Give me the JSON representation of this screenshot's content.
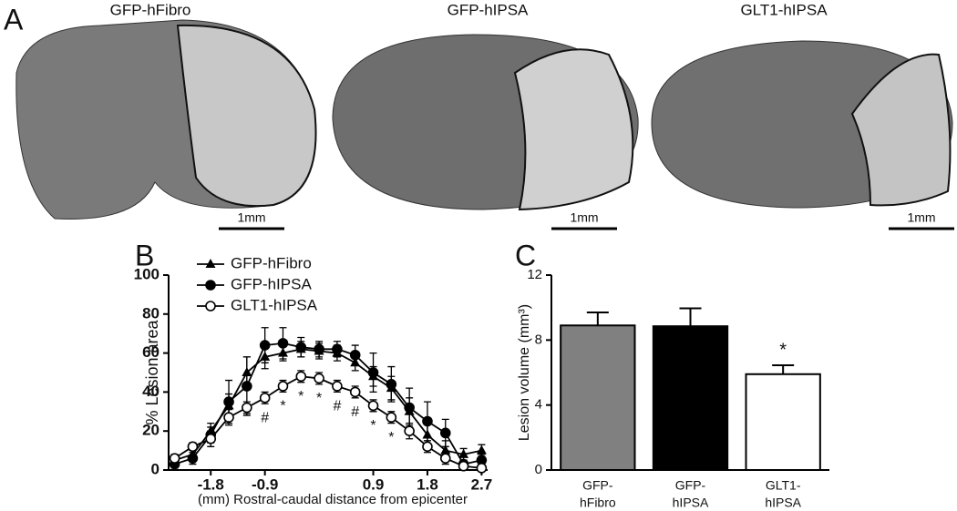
{
  "panel_a": {
    "label": "A",
    "sections": [
      {
        "title": "GFP-hFibro",
        "scale_bar": "1mm"
      },
      {
        "title": "GFP-hIPSA",
        "scale_bar": "1mm"
      },
      {
        "title": "GLT1-hIPSA",
        "scale_bar": "1mm"
      }
    ]
  },
  "chart_data": [
    {
      "type": "line",
      "panel": "B",
      "x": [
        -2.4,
        -2.1,
        -1.8,
        -1.5,
        -1.2,
        -0.9,
        -0.6,
        -0.3,
        0,
        0.3,
        0.6,
        0.9,
        1.2,
        1.5,
        1.8,
        2.1,
        2.4,
        2.7
      ],
      "xlim": [
        -2.5,
        2.8
      ],
      "xticks": [
        -1.8,
        -0.9,
        0.9,
        1.8,
        2.7
      ],
      "ylim": [
        0,
        100
      ],
      "yticks": [
        0,
        20,
        40,
        60,
        80,
        100
      ],
      "ylabel": "% Lesion area",
      "xlabel": "(mm) Rostral-caudal distance from epicenter",
      "legend": "top-left",
      "series": [
        {
          "name": "GFP-hFibro",
          "color": "#000000",
          "marker": "triangle",
          "values": [
            5,
            8,
            20,
            33,
            50,
            58,
            60,
            62,
            61,
            60,
            55,
            48,
            42,
            30,
            18,
            10,
            8,
            10
          ],
          "errors": [
            2,
            3,
            4,
            6,
            8,
            6,
            4,
            4,
            4,
            4,
            4,
            5,
            6,
            7,
            6,
            5,
            3,
            3
          ]
        },
        {
          "name": "GFP-hIPSA",
          "color": "#000000",
          "marker": "filled-circle",
          "values": [
            3,
            6,
            18,
            35,
            43,
            64,
            65,
            63,
            62,
            62,
            59,
            50,
            44,
            32,
            25,
            19,
            3,
            5
          ],
          "errors": [
            2,
            3,
            4,
            11,
            15,
            9,
            8,
            5,
            4,
            4,
            5,
            10,
            9,
            10,
            10,
            7,
            2,
            3
          ]
        },
        {
          "name": "GLT1-hIPSA",
          "color": "#000000",
          "marker": "open-circle",
          "values": [
            6,
            12,
            16,
            27,
            32,
            37,
            43,
            48,
            47,
            43,
            40,
            33,
            27,
            20,
            12,
            6,
            2,
            1
          ],
          "errors": [
            2,
            2,
            4,
            4,
            3,
            3,
            3,
            3,
            3,
            3,
            3,
            3,
            3,
            4,
            3,
            3,
            2,
            1
          ]
        }
      ],
      "significance": [
        null,
        null,
        null,
        null,
        null,
        "#",
        "*",
        "*",
        "*",
        "#",
        "#",
        "*",
        "*",
        null,
        null,
        null,
        null,
        null
      ]
    },
    {
      "type": "bar",
      "panel": "C",
      "categories": [
        [
          "GFP-",
          "hFibro"
        ],
        [
          "GFP-",
          "hIPSA"
        ],
        [
          "GLT1-",
          "hIPSA"
        ]
      ],
      "values": [
        8.9,
        8.85,
        5.9
      ],
      "errors": [
        0.8,
        1.1,
        0.55
      ],
      "colors": [
        "#808080",
        "#000000",
        "#ffffff"
      ],
      "ylim": [
        0,
        12
      ],
      "yticks": [
        0,
        4,
        8,
        12
      ],
      "ylabel": "Lesion volume (mm³)",
      "significance": [
        null,
        null,
        "*"
      ]
    }
  ]
}
